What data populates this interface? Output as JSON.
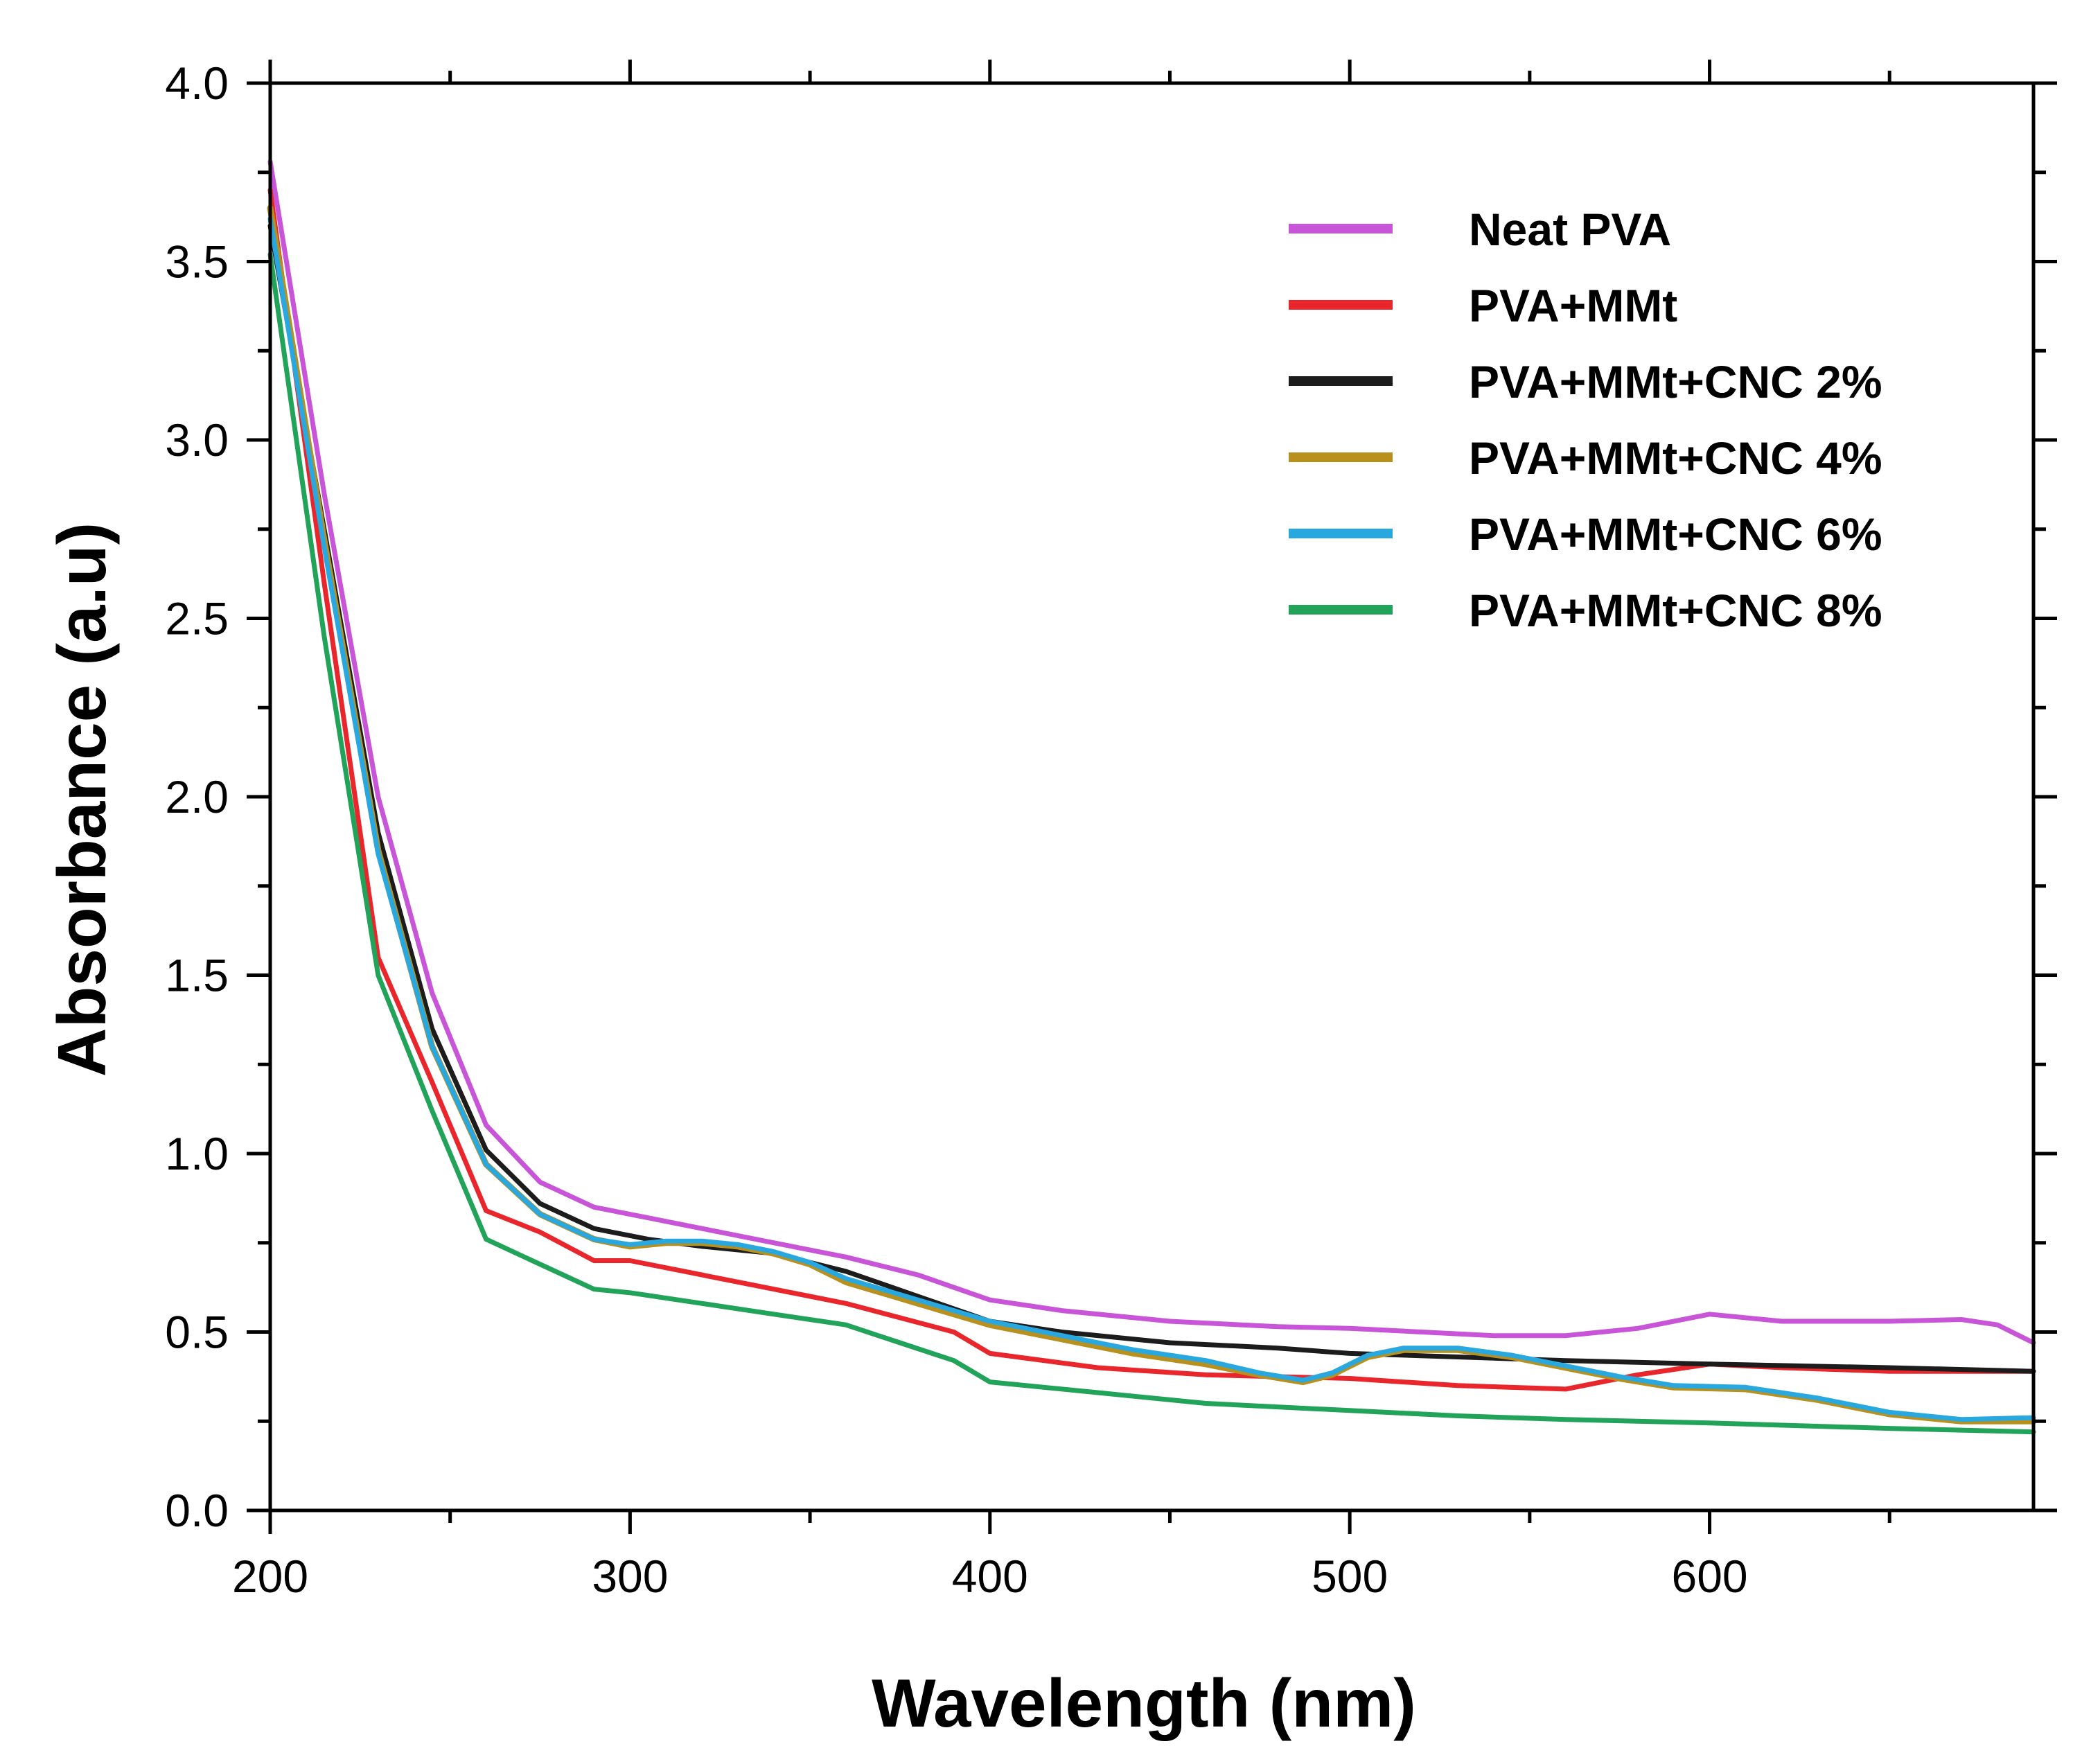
{
  "chart_data": {
    "type": "line",
    "title": "",
    "xlabel": "Wavelength (nm)",
    "ylabel": "Absorbance (a.u)",
    "xlim": [
      200,
      690
    ],
    "ylim": [
      0.0,
      4.0
    ],
    "x_ticks": [
      200,
      300,
      400,
      500,
      600
    ],
    "y_ticks": [
      0.0,
      0.5,
      1.0,
      1.5,
      2.0,
      2.5,
      3.0,
      3.5,
      4.0
    ],
    "x_tick_labels": [
      "200",
      "300",
      "400",
      "500",
      "600"
    ],
    "y_tick_labels": [
      "0.0",
      "0.5",
      "1.0",
      "1.5",
      "2.0",
      "2.5",
      "3.0",
      "3.5",
      "4.0"
    ],
    "grid": false,
    "legend_position": "top-right",
    "series": [
      {
        "name": "Neat PVA",
        "color": "#c855d8",
        "x": [
          200,
          215,
          230,
          245,
          260,
          275,
          290,
          305,
          320,
          340,
          360,
          380,
          400,
          420,
          450,
          480,
          500,
          520,
          540,
          560,
          580,
          600,
          620,
          650,
          670,
          680,
          690
        ],
        "y": [
          3.78,
          2.85,
          2.0,
          1.45,
          1.08,
          0.92,
          0.85,
          0.82,
          0.79,
          0.75,
          0.71,
          0.66,
          0.59,
          0.56,
          0.53,
          0.515,
          0.51,
          0.5,
          0.49,
          0.49,
          0.51,
          0.55,
          0.53,
          0.53,
          0.535,
          0.52,
          0.47
        ]
      },
      {
        "name": "PVA+MMt",
        "color": "#e8262b",
        "x": [
          200,
          215,
          230,
          245,
          260,
          275,
          290,
          300,
          320,
          340,
          360,
          375,
          390,
          400,
          430,
          460,
          500,
          530,
          560,
          580,
          600,
          620,
          650,
          690
        ],
        "y": [
          3.7,
          2.6,
          1.55,
          1.2,
          0.84,
          0.78,
          0.7,
          0.7,
          0.66,
          0.62,
          0.58,
          0.54,
          0.5,
          0.44,
          0.4,
          0.38,
          0.37,
          0.35,
          0.34,
          0.38,
          0.41,
          0.4,
          0.39,
          0.39
        ]
      },
      {
        "name": "PVA+MMt+CNC 2%",
        "color": "#1c1c1c",
        "x": [
          200,
          215,
          230,
          245,
          260,
          275,
          290,
          305,
          320,
          340,
          360,
          380,
          400,
          420,
          450,
          480,
          500,
          530,
          560,
          600,
          650,
          690
        ],
        "y": [
          3.6,
          2.75,
          1.9,
          1.35,
          1.01,
          0.86,
          0.79,
          0.76,
          0.74,
          0.72,
          0.67,
          0.6,
          0.53,
          0.5,
          0.47,
          0.455,
          0.44,
          0.43,
          0.42,
          0.41,
          0.4,
          0.39
        ]
      },
      {
        "name": "PVA+MMt+CNC 4%",
        "color": "#b8901e",
        "x": [
          200,
          215,
          230,
          245,
          260,
          275,
          290,
          300,
          310,
          320,
          330,
          340,
          350,
          360,
          380,
          400,
          420,
          440,
          460,
          475,
          487,
          495,
          505,
          515,
          530,
          545,
          560,
          575,
          590,
          610,
          630,
          650,
          670,
          690
        ],
        "y": [
          3.65,
          2.72,
          1.85,
          1.3,
          0.97,
          0.83,
          0.76,
          0.74,
          0.75,
          0.75,
          0.74,
          0.72,
          0.69,
          0.64,
          0.58,
          0.52,
          0.48,
          0.44,
          0.41,
          0.38,
          0.36,
          0.38,
          0.43,
          0.45,
          0.45,
          0.43,
          0.4,
          0.37,
          0.345,
          0.34,
          0.31,
          0.27,
          0.25,
          0.25
        ]
      },
      {
        "name": "PVA+MMt+CNC 6%",
        "color": "#29a8e0",
        "x": [
          200,
          215,
          230,
          245,
          260,
          275,
          290,
          300,
          310,
          320,
          330,
          340,
          350,
          360,
          380,
          400,
          420,
          440,
          460,
          475,
          487,
          495,
          505,
          515,
          530,
          545,
          560,
          575,
          590,
          610,
          630,
          650,
          670,
          690
        ],
        "y": [
          3.62,
          2.7,
          1.84,
          1.3,
          0.97,
          0.83,
          0.76,
          0.745,
          0.755,
          0.755,
          0.745,
          0.725,
          0.695,
          0.65,
          0.59,
          0.53,
          0.49,
          0.45,
          0.42,
          0.385,
          0.365,
          0.385,
          0.435,
          0.455,
          0.455,
          0.435,
          0.405,
          0.375,
          0.35,
          0.345,
          0.315,
          0.275,
          0.255,
          0.26
        ]
      },
      {
        "name": "PVA+MMt+CNC 8%",
        "color": "#22a35a",
        "x": [
          200,
          215,
          230,
          245,
          260,
          275,
          290,
          300,
          320,
          340,
          360,
          375,
          390,
          400,
          430,
          460,
          500,
          530,
          560,
          600,
          650,
          690
        ],
        "y": [
          3.52,
          2.45,
          1.5,
          1.12,
          0.76,
          0.69,
          0.62,
          0.61,
          0.58,
          0.55,
          0.52,
          0.47,
          0.42,
          0.36,
          0.33,
          0.3,
          0.28,
          0.265,
          0.255,
          0.245,
          0.23,
          0.22
        ]
      }
    ]
  }
}
